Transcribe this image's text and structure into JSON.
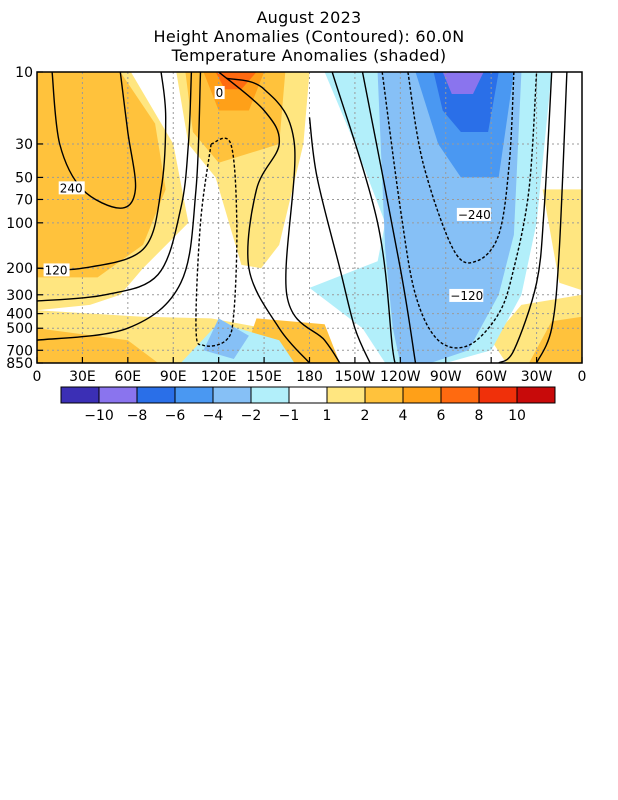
{
  "chart_data": {
    "type": "heatmap",
    "title": "August 2023",
    "subtitle_1": "Height Anomalies (Contoured): 60.0N",
    "subtitle_2": "Temperature Anomalies (shaded)",
    "x_ticks": [
      {
        "lon": 0,
        "label": "0"
      },
      {
        "lon": 30,
        "label": "30E"
      },
      {
        "lon": 60,
        "label": "60E"
      },
      {
        "lon": 90,
        "label": "90E"
      },
      {
        "lon": 120,
        "label": "120E"
      },
      {
        "lon": 150,
        "label": "150E"
      },
      {
        "lon": 180,
        "label": "180"
      },
      {
        "lon": 210,
        "label": "150W"
      },
      {
        "lon": 240,
        "label": "120W"
      },
      {
        "lon": 270,
        "label": "90W"
      },
      {
        "lon": 300,
        "label": "60W"
      },
      {
        "lon": 330,
        "label": "30W"
      },
      {
        "lon": 360,
        "label": "0"
      }
    ],
    "y_ticks": [
      {
        "p": 10,
        "label": "10"
      },
      {
        "p": 30,
        "label": "30"
      },
      {
        "p": 50,
        "label": "50"
      },
      {
        "p": 70,
        "label": "70"
      },
      {
        "p": 100,
        "label": "100"
      },
      {
        "p": 200,
        "label": "200"
      },
      {
        "p": 300,
        "label": "300"
      },
      {
        "p": 400,
        "label": "400"
      },
      {
        "p": 500,
        "label": "500"
      },
      {
        "p": 700,
        "label": "700"
      },
      {
        "p": 850,
        "label": "850"
      }
    ],
    "xlim": [
      0,
      360
    ],
    "ylim": [
      10,
      850
    ],
    "y_scale": "log",
    "grid": true,
    "colorbar": {
      "colors": [
        "#3b2fb5",
        "#8a74ee",
        "#2a6fe8",
        "#4a98f2",
        "#86c0f6",
        "#b2effa",
        "#ffffff",
        "#ffe680",
        "#ffc23c",
        "#ffa018",
        "#ff6a10",
        "#f0300a",
        "#c80a0a"
      ],
      "labels": [
        {
          "after_index": 0,
          "text": "−10"
        },
        {
          "after_index": 1,
          "text": "−8"
        },
        {
          "after_index": 2,
          "text": "−6"
        },
        {
          "after_index": 3,
          "text": "−4"
        },
        {
          "after_index": 4,
          "text": "−2"
        },
        {
          "after_index": 5,
          "text": "−1"
        },
        {
          "after_index": 6,
          "text": "1"
        },
        {
          "after_index": 7,
          "text": "2"
        },
        {
          "after_index": 8,
          "text": "4"
        },
        {
          "after_index": 9,
          "text": "6"
        },
        {
          "after_index": 10,
          "text": "8"
        },
        {
          "after_index": 11,
          "text": "10"
        }
      ]
    },
    "shaded_regions": [
      {
        "level": "2",
        "polygon": [
          [
            0,
            10
          ],
          [
            62,
            10
          ],
          [
            90,
            30
          ],
          [
            100,
            100
          ],
          [
            70,
            200
          ],
          [
            55,
            300
          ],
          [
            35,
            350
          ],
          [
            0,
            380
          ]
        ]
      },
      {
        "level": "4",
        "polygon": [
          [
            0,
            10
          ],
          [
            55,
            10
          ],
          [
            78,
            22
          ],
          [
            85,
            60
          ],
          [
            70,
            140
          ],
          [
            40,
            230
          ],
          [
            0,
            230
          ]
        ]
      },
      {
        "level": "2",
        "polygon": [
          [
            92,
            10
          ],
          [
            180,
            10
          ],
          [
            176,
            30
          ],
          [
            160,
            140
          ],
          [
            148,
            200
          ],
          [
            135,
            190
          ],
          [
            118,
            50
          ],
          [
            100,
            30
          ]
        ]
      },
      {
        "level": "4",
        "polygon": [
          [
            98,
            10
          ],
          [
            164,
            10
          ],
          [
            160,
            30
          ],
          [
            120,
            40
          ],
          [
            103,
            25
          ]
        ]
      },
      {
        "level": "6",
        "polygon": [
          [
            110,
            10
          ],
          [
            150,
            10
          ],
          [
            140,
            18
          ],
          [
            120,
            18
          ]
        ]
      },
      {
        "level": "8",
        "polygon": [
          [
            118,
            10
          ],
          [
            145,
            10
          ],
          [
            135,
            13
          ],
          [
            124,
            13
          ]
        ]
      },
      {
        "level": "2",
        "polygon": [
          [
            0,
            380
          ],
          [
            70,
            420
          ],
          [
            115,
            430
          ],
          [
            150,
            500
          ],
          [
            190,
            520
          ],
          [
            170,
            850
          ],
          [
            0,
            850
          ]
        ]
      },
      {
        "level": "4",
        "polygon": [
          [
            0,
            500
          ],
          [
            60,
            600
          ],
          [
            80,
            850
          ],
          [
            0,
            850
          ]
        ]
      },
      {
        "level": "4",
        "polygon": [
          [
            145,
            430
          ],
          [
            190,
            470
          ],
          [
            200,
            850
          ],
          [
            150,
            850
          ],
          [
            140,
            600
          ]
        ]
      },
      {
        "level": "2",
        "polygon": [
          [
            334,
            60
          ],
          [
            360,
            60
          ],
          [
            360,
            280
          ],
          [
            345,
            250
          ]
        ]
      },
      {
        "level": "2",
        "polygon": [
          [
            320,
            350
          ],
          [
            360,
            300
          ],
          [
            360,
            850
          ],
          [
            310,
            850
          ],
          [
            300,
            600
          ]
        ]
      },
      {
        "level": "4",
        "polygon": [
          [
            340,
            450
          ],
          [
            360,
            420
          ],
          [
            360,
            850
          ],
          [
            325,
            850
          ]
        ]
      },
      {
        "level": "-1",
        "polygon": [
          [
            190,
            10
          ],
          [
            340,
            10
          ],
          [
            330,
            100
          ],
          [
            320,
            300
          ],
          [
            300,
            700
          ],
          [
            270,
            850
          ],
          [
            230,
            850
          ],
          [
            215,
            500
          ],
          [
            180,
            270
          ],
          [
            225,
            180
          ],
          [
            230,
            100
          ],
          [
            210,
            30
          ]
        ]
      },
      {
        "level": "-1",
        "polygon": [
          [
            95,
            850
          ],
          [
            120,
            460
          ],
          [
            160,
            600
          ],
          [
            170,
            850
          ]
        ]
      },
      {
        "level": "-2",
        "polygon": [
          [
            225,
            10
          ],
          [
            320,
            10
          ],
          [
            315,
            120
          ],
          [
            305,
            300
          ],
          [
            285,
            700
          ],
          [
            260,
            850
          ],
          [
            240,
            850
          ],
          [
            235,
            500
          ],
          [
            230,
            150
          ]
        ]
      },
      {
        "level": "-2",
        "polygon": [
          [
            110,
            700
          ],
          [
            120,
            430
          ],
          [
            140,
            560
          ],
          [
            130,
            800
          ]
        ]
      },
      {
        "level": "-4",
        "polygon": [
          [
            250,
            10
          ],
          [
            315,
            10
          ],
          [
            305,
            50
          ],
          [
            280,
            50
          ],
          [
            265,
            30
          ]
        ]
      },
      {
        "level": "-6",
        "polygon": [
          [
            262,
            10
          ],
          [
            305,
            10
          ],
          [
            298,
            25
          ],
          [
            280,
            25
          ],
          [
            268,
            18
          ]
        ]
      },
      {
        "level": "-8",
        "polygon": [
          [
            268,
            10
          ],
          [
            295,
            10
          ],
          [
            288,
            14
          ],
          [
            274,
            14
          ]
        ]
      }
    ],
    "contours": [
      {
        "value": "240",
        "label": "240",
        "label_at": [
          15,
          60
        ],
        "points": [
          [
            10,
            10
          ],
          [
            15,
            30
          ],
          [
            30,
            60
          ],
          [
            55,
            80
          ],
          [
            65,
            60
          ],
          [
            60,
            25
          ],
          [
            55,
            10
          ]
        ]
      },
      {
        "value": "120",
        "label": "120",
        "label_at": [
          5,
          210
        ],
        "points": [
          [
            0,
            200
          ],
          [
            30,
            200
          ],
          [
            70,
            150
          ],
          [
            82,
            60
          ],
          [
            85,
            20
          ],
          [
            82,
            10
          ]
        ]
      },
      {
        "value": "60",
        "label": "",
        "points": [
          [
            0,
            330
          ],
          [
            45,
            300
          ],
          [
            80,
            220
          ],
          [
            95,
            80
          ],
          [
            100,
            30
          ],
          [
            102,
            10
          ]
        ]
      },
      {
        "value": "0",
        "label": "",
        "points": [
          [
            0,
            600
          ],
          [
            60,
            500
          ],
          [
            95,
            250
          ],
          [
            105,
            60
          ],
          [
            108,
            10
          ]
        ]
      },
      {
        "value": "60a",
        "label": "",
        "points": [
          [
            120,
            10
          ],
          [
            150,
            18
          ],
          [
            160,
            30
          ],
          [
            145,
            60
          ],
          [
            140,
            200
          ],
          [
            160,
            500
          ],
          [
            180,
            850
          ]
        ]
      },
      {
        "value": "0b",
        "label": "0",
        "label_at": [
          118,
          14
        ],
        "points": [
          [
            125,
            11
          ],
          [
            150,
            13
          ],
          [
            170,
            30
          ],
          [
            165,
            300
          ],
          [
            190,
            600
          ],
          [
            200,
            850
          ]
        ]
      },
      {
        "value": "60b",
        "label": "",
        "points": [
          [
            180,
            20
          ],
          [
            185,
            50
          ],
          [
            200,
            200
          ],
          [
            210,
            500
          ],
          [
            220,
            850
          ]
        ]
      },
      {
        "value": "c1",
        "label": "",
        "points": [
          [
            195,
            10
          ],
          [
            225,
            100
          ],
          [
            235,
            700
          ],
          [
            238,
            850
          ]
        ]
      },
      {
        "value": "c2",
        "label": "",
        "points": [
          [
            215,
            10
          ],
          [
            240,
            200
          ],
          [
            250,
            850
          ]
        ]
      },
      {
        "value": "-240",
        "label": "−240",
        "label_at": [
          278,
          90
        ],
        "points": [
          [
            245,
            10
          ],
          [
            255,
            40
          ],
          [
            275,
            150
          ],
          [
            290,
            180
          ],
          [
            305,
            120
          ],
          [
            312,
            40
          ],
          [
            315,
            10
          ]
        ]
      },
      {
        "value": "-120",
        "label": "−120",
        "label_at": [
          273,
          310
        ],
        "points": [
          [
            228,
            10
          ],
          [
            240,
            80
          ],
          [
            250,
            300
          ],
          [
            265,
            600
          ],
          [
            285,
            650
          ],
          [
            305,
            400
          ],
          [
            315,
            200
          ],
          [
            325,
            60
          ],
          [
            330,
            10
          ]
        ]
      },
      {
        "value": "c3",
        "label": "",
        "points": [
          [
            340,
            10
          ],
          [
            335,
            80
          ],
          [
            330,
            250
          ],
          [
            315,
            700
          ],
          [
            305,
            850
          ]
        ]
      },
      {
        "value": "c4",
        "label": "",
        "points": [
          [
            350,
            10
          ],
          [
            345,
            150
          ],
          [
            340,
            500
          ],
          [
            330,
            850
          ]
        ]
      }
    ],
    "dashed_contours": [
      {
        "points": [
          [
            115,
            30
          ],
          [
            128,
            30
          ],
          [
            132,
            100
          ],
          [
            130,
            400
          ],
          [
            125,
            600
          ],
          [
            110,
            650
          ],
          [
            105,
            500
          ],
          [
            108,
            100
          ]
        ]
      }
    ]
  }
}
